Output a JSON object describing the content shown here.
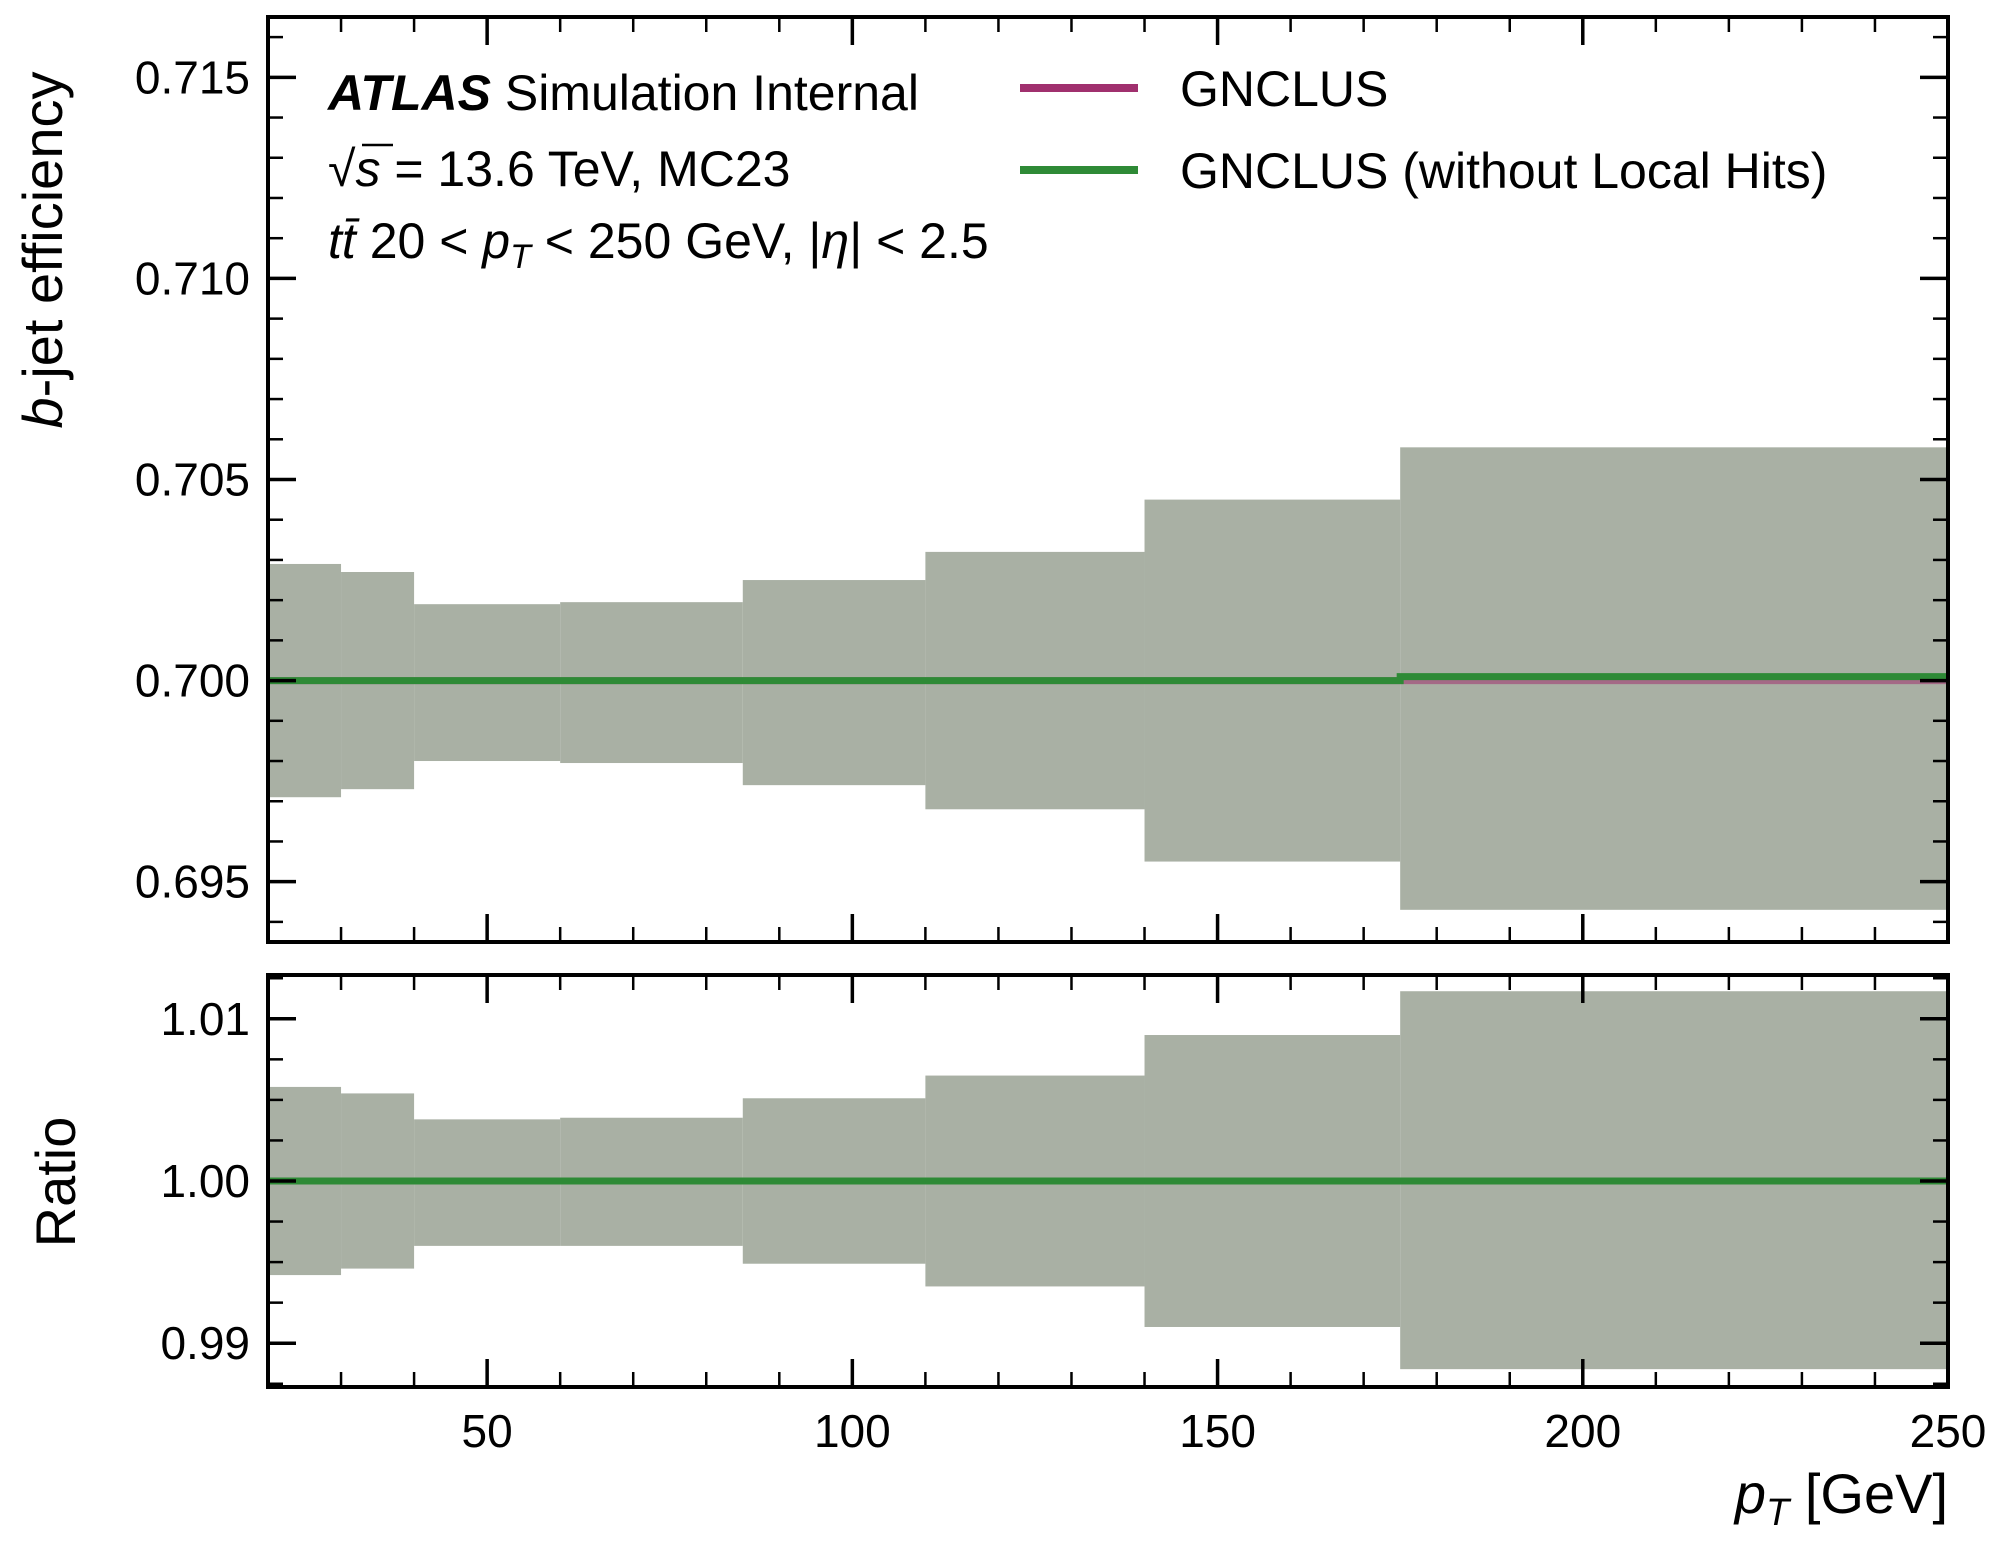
{
  "chart_data": [
    {
      "type": "line",
      "panel": "main",
      "ylabel_italic": "b",
      "ylabel_rest": "-jet efficiency",
      "ylim": [
        0.6935,
        0.7165
      ],
      "yticks": [
        0.695,
        0.7,
        0.705,
        0.71,
        0.715
      ],
      "ytick_labels": [
        "0.695",
        "0.700",
        "0.705",
        "0.710",
        "0.715"
      ],
      "x_edges": [
        20,
        30,
        40,
        60,
        85,
        110,
        140,
        175,
        250
      ],
      "series": [
        {
          "name": "GNCLUS",
          "color": "#a0306e",
          "values": [
            0.7,
            0.7,
            0.7,
            0.7,
            0.7,
            0.7,
            0.7,
            0.7
          ]
        },
        {
          "name": "GNCLUS (without Local Hits)",
          "color": "#2e8a36",
          "values": [
            0.7,
            0.7,
            0.7,
            0.7,
            0.7,
            0.7,
            0.7,
            0.7001
          ]
        }
      ],
      "band": {
        "color": "#a9b0a4",
        "upper": [
          0.7029,
          0.7027,
          0.7019,
          0.70195,
          0.7025,
          0.7032,
          0.7045,
          0.7058
        ],
        "lower": [
          0.6971,
          0.6973,
          0.698,
          0.69795,
          0.6974,
          0.6968,
          0.6955,
          0.6943
        ]
      }
    },
    {
      "type": "line",
      "panel": "ratio",
      "ylabel": "Ratio",
      "ylim": [
        0.9873,
        1.0127
      ],
      "yticks": [
        0.99,
        1.0,
        1.01
      ],
      "ytick_labels": [
        "0.99",
        "1.00",
        "1.01"
      ],
      "xlabel_italic": "p",
      "xlabel_sub": "T",
      "xlabel_rest": " [GeV]",
      "xlim": [
        20,
        250
      ],
      "xticks": [
        50,
        100,
        150,
        200,
        250
      ],
      "xtick_labels": [
        "50",
        "100",
        "150",
        "200",
        "250"
      ],
      "x_edges": [
        20,
        30,
        40,
        60,
        85,
        110,
        140,
        175,
        250
      ],
      "series": [
        {
          "name": "GNCLUS (without Local Hits)",
          "color": "#2e8a36",
          "values": [
            1.0,
            1.0,
            1.0,
            1.0,
            1.0,
            1.0,
            1.0,
            1.0
          ]
        }
      ],
      "band": {
        "color": "#a9b0a4",
        "upper": [
          1.0058,
          1.0054,
          1.0038,
          1.0039,
          1.0051,
          1.0065,
          1.009,
          1.0117
        ],
        "lower": [
          0.9942,
          0.9946,
          0.996,
          0.996,
          0.9949,
          0.9935,
          0.991,
          0.9884
        ]
      }
    }
  ],
  "annotations": {
    "atlas": "ATLAS",
    "atlas_rest": " Simulation Internal",
    "line2_sqrt": "√",
    "line2_s": "s",
    "line2_rest": " = 13.6 TeV, MC23",
    "line3_tt": "tt̄",
    "line3_a": " 20 < ",
    "line3_p": "p",
    "line3_sub": "T",
    "line3_b": " < 250 GeV, |",
    "line3_eta": "η",
    "line3_c": "| < 2.5"
  },
  "legend": {
    "position": "top-right",
    "items": [
      {
        "label": "GNCLUS",
        "color": "#a0306e"
      },
      {
        "label": "GNCLUS (without Local Hits)",
        "color": "#2e8a36"
      }
    ]
  }
}
